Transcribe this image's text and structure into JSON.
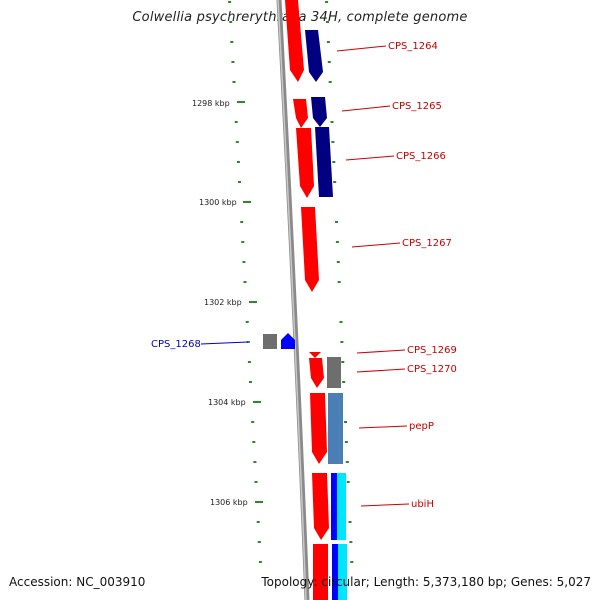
{
  "title": "Colwellia psychrerythraea 34H, complete genome",
  "footer": {
    "accession": "Accession: NC_003910",
    "summary": "Topology: circular; Length: 5,373,180 bp; Genes: 5,027"
  },
  "colors": {
    "backbone": "#8a8a8a",
    "tick": "#2a8a2a",
    "forward_cds": "#ff0000",
    "reverse_cds": "#0000ff",
    "blast_navy": "#000080",
    "blast_steel": "#4a7fb5",
    "blast_cyan": "#00e5ff",
    "other": "#6e6e6e",
    "label_red": "#cc0000",
    "label_blue": "#0000cc"
  },
  "kbp_ticks": [
    "1298 kbp",
    "1300 kbp",
    "1302 kbp",
    "1304 kbp",
    "1306 kbp"
  ],
  "genes": [
    {
      "id": "CPS_1264",
      "strand": "+",
      "color": "label_red"
    },
    {
      "id": "CPS_1265",
      "strand": "+",
      "color": "label_red"
    },
    {
      "id": "CPS_1266",
      "strand": "+",
      "color": "label_red"
    },
    {
      "id": "CPS_1267",
      "strand": "+",
      "color": "label_red"
    },
    {
      "id": "CPS_1268",
      "strand": "-",
      "color": "label_blue"
    },
    {
      "id": "CPS_1269",
      "strand": "+",
      "color": "label_red"
    },
    {
      "id": "CPS_1270",
      "strand": "+",
      "color": "label_red"
    },
    {
      "id": "pepP",
      "strand": "+",
      "color": "label_red"
    },
    {
      "id": "ubiH",
      "strand": "+",
      "color": "label_red"
    }
  ]
}
